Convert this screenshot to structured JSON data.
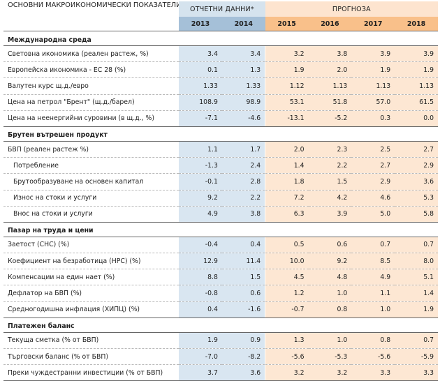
{
  "header": {
    "indicators_label": "ОСНОВНИ МАКРОИКОНОМИЧЕСКИ ПОКАЗАТЕЛИ",
    "actual_label": "ОТЧЕТНИ ДАННИ*",
    "forecast_label": "ПРОГНОЗА",
    "years": [
      "2013",
      "2014",
      "2015",
      "2016",
      "2017",
      "2018"
    ]
  },
  "colors": {
    "actual_header": "#a5c0d8",
    "actual_cells": "#d9e6f1",
    "forecast_header": "#f9c08a",
    "forecast_cells": "#fde7d3"
  },
  "sections": [
    {
      "title": "Международна среда",
      "rows": [
        {
          "label": "Световна икономика (реален растеж, %)",
          "indent": false,
          "values": [
            "3.4",
            "3.4",
            "3.2",
            "3.8",
            "3.9",
            "3.9"
          ]
        },
        {
          "label": "Европейска икономика - ЕС 28 (%)",
          "indent": false,
          "values": [
            "0.1",
            "1.3",
            "1.9",
            "2.0",
            "1.9",
            "1.9"
          ]
        },
        {
          "label": "Валутен курс щ.д./евро",
          "indent": false,
          "values": [
            "1.33",
            "1.33",
            "1.12",
            "1.13",
            "1.13",
            "1.13"
          ]
        },
        {
          "label": "Цена на петрол \"Брент\" (щ.д./барел)",
          "indent": false,
          "values": [
            "108.9",
            "98.9",
            "53.1",
            "51.8",
            "57.0",
            "61.5"
          ]
        },
        {
          "label": "Цена на неенергийни суровини (в щ.д., %)",
          "indent": false,
          "values": [
            "-7.1",
            "-4.6",
            "-13.1",
            "-5.2",
            "0.3",
            "0.0"
          ]
        }
      ]
    },
    {
      "title": "Брутен вътрешен продукт",
      "rows": [
        {
          "label": "БВП (реален растеж %)",
          "indent": false,
          "values": [
            "1.1",
            "1.7",
            "2.0",
            "2.3",
            "2.5",
            "2.7"
          ]
        },
        {
          "label": "Потребление",
          "indent": true,
          "values": [
            "-1.3",
            "2.4",
            "1.4",
            "2.2",
            "2.7",
            "2.9"
          ]
        },
        {
          "label": "Брутообразуване на основен капитал",
          "indent": true,
          "values": [
            "-0.1",
            "2.8",
            "1.8",
            "1.5",
            "2.9",
            "3.6"
          ]
        },
        {
          "label": "Износ на стоки и услуги",
          "indent": true,
          "values": [
            "9.2",
            "2.2",
            "7.2",
            "4.2",
            "4.6",
            "5.3"
          ]
        },
        {
          "label": "Внос на стоки и услуги",
          "indent": true,
          "values": [
            "4.9",
            "3.8",
            "6.3",
            "3.9",
            "5.0",
            "5.8"
          ]
        }
      ]
    },
    {
      "title": "Пазар на труда и цени",
      "rows": [
        {
          "label": "Заетост (СНС) (%)",
          "indent": false,
          "values": [
            "-0.4",
            "0.4",
            "0.5",
            "0.6",
            "0.7",
            "0.7"
          ]
        },
        {
          "label": "Коефициент на безработица (НРС) (%)",
          "indent": false,
          "values": [
            "12.9",
            "11.4",
            "10.0",
            "9.2",
            "8.5",
            "8.0"
          ]
        },
        {
          "label": "Компенсации на един нает (%)",
          "indent": false,
          "values": [
            "8.8",
            "1.5",
            "4.5",
            "4.8",
            "4.9",
            "5.1"
          ]
        },
        {
          "label": "Дефлатор на БВП (%)",
          "indent": false,
          "values": [
            "-0.8",
            "0.6",
            "1.2",
            "1.0",
            "1.1",
            "1.4"
          ]
        },
        {
          "label": "Средногодишна инфлация (ХИПЦ) (%)",
          "indent": false,
          "values": [
            "0.4",
            "-1.6",
            "-0.7",
            "0.8",
            "1.0",
            "1.9"
          ]
        }
      ]
    },
    {
      "title": "Платежен баланс",
      "rows": [
        {
          "label": "Текуща сметка (% от БВП)",
          "indent": false,
          "values": [
            "1.9",
            "0.9",
            "1.3",
            "1.0",
            "0.8",
            "0.7"
          ]
        },
        {
          "label": "Търговски баланс (% от БВП)",
          "indent": false,
          "values": [
            "-7.0",
            "-8.2",
            "-5.6",
            "-5.3",
            "-5.6",
            "-5.9"
          ]
        },
        {
          "label": "Преки чуждестранни инвестиции (% от БВП)",
          "indent": false,
          "values": [
            "3.7",
            "3.6",
            "3.2",
            "3.2",
            "3.3",
            "3.3"
          ]
        }
      ]
    }
  ]
}
